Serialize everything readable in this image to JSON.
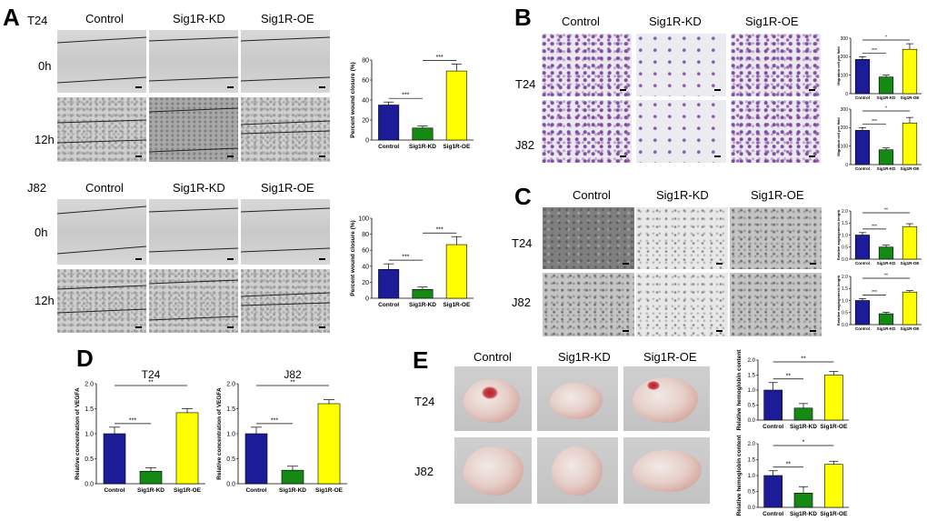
{
  "panels": {
    "A": {
      "label": "A",
      "cols": [
        "Control",
        "Sig1R-KD",
        "Sig1R-OE"
      ],
      "groups": [
        {
          "cell_line": "T24",
          "rows": [
            "0h",
            "12h"
          ]
        },
        {
          "cell_line": "J82",
          "rows": [
            "0h",
            "12h"
          ]
        }
      ]
    },
    "B": {
      "label": "B",
      "cols": [
        "Control",
        "Sig1R-KD",
        "Sig1R-OE"
      ],
      "rows": [
        "T24",
        "J82"
      ]
    },
    "C": {
      "label": "C",
      "cols": [
        "Control",
        "Sig1R-KD",
        "Sig1R-OE"
      ],
      "rows": [
        "T24",
        "J82"
      ]
    },
    "D": {
      "label": "D"
    },
    "E": {
      "label": "E",
      "cols": [
        "Control",
        "Sig1R-KD",
        "Sig1R-OE"
      ],
      "rows": [
        "T24",
        "J82"
      ]
    }
  },
  "colors": {
    "control": "#1c1c99",
    "kd": "#148a14",
    "oe": "#ffff00"
  },
  "chart_data": [
    {
      "id": "A-T24",
      "type": "bar",
      "categories": [
        "Control",
        "Sig1R-KD",
        "Sig1R-OE"
      ],
      "values": [
        35,
        12,
        69
      ],
      "errors": [
        3,
        2,
        7
      ],
      "ylabel": "Percent wound closure (%)",
      "ylim": [
        0,
        80
      ],
      "yticks": [
        "0",
        "20",
        "40",
        "60",
        "80"
      ],
      "sig": [
        {
          "pair": [
            0,
            1
          ],
          "text": "***"
        },
        {
          "pair": [
            1,
            2
          ],
          "text": "***"
        }
      ]
    },
    {
      "id": "A-J82",
      "type": "bar",
      "categories": [
        "Control",
        "Sig1R-KD",
        "Sig1R-OE"
      ],
      "values": [
        36,
        11,
        67
      ],
      "errors": [
        7,
        3,
        10
      ],
      "ylabel": "Percent wound closure (%)",
      "ylim": [
        0,
        100
      ],
      "yticks": [
        "0",
        "20",
        "40",
        "60",
        "80",
        "100"
      ],
      "sig": [
        {
          "pair": [
            0,
            1
          ],
          "text": "***"
        },
        {
          "pair": [
            1,
            2
          ],
          "text": "***"
        }
      ]
    },
    {
      "id": "B-T24",
      "type": "bar",
      "categories": [
        "Control",
        "Sig1R-KD",
        "Sig1R-OE"
      ],
      "values": [
        185,
        90,
        240
      ],
      "errors": [
        15,
        10,
        30
      ],
      "ylabel": "Migration cell per field",
      "ylim": [
        0,
        300
      ],
      "yticks": [
        "0",
        "100",
        "200",
        "300"
      ],
      "sig": [
        {
          "pair": [
            0,
            1
          ],
          "text": "***"
        },
        {
          "pair": [
            0,
            2
          ],
          "text": "*"
        }
      ]
    },
    {
      "id": "B-J82",
      "type": "bar",
      "categories": [
        "Control",
        "Sig1R-KD",
        "Sig1R-OE"
      ],
      "values": [
        185,
        80,
        225
      ],
      "errors": [
        15,
        10,
        30
      ],
      "ylabel": "Migration cell per field",
      "ylim": [
        0,
        300
      ],
      "yticks": [
        "0",
        "100",
        "200",
        "300"
      ],
      "sig": [
        {
          "pair": [
            0,
            1
          ],
          "text": "***"
        },
        {
          "pair": [
            0,
            2
          ],
          "text": "*"
        }
      ]
    },
    {
      "id": "C-T24",
      "type": "bar",
      "categories": [
        "Control",
        "Sig1R-KD",
        "Sig1R-OE"
      ],
      "values": [
        1.0,
        0.5,
        1.35
      ],
      "errors": [
        0.1,
        0.08,
        0.12
      ],
      "ylabel": "Relative angiogenesis length",
      "ylim": [
        0,
        2.0
      ],
      "yticks": [
        "0.0",
        "0.5",
        "1.0",
        "1.5",
        "2.0"
      ],
      "sig": [
        {
          "pair": [
            0,
            1
          ],
          "text": "***"
        },
        {
          "pair": [
            0,
            2
          ],
          "text": "**"
        }
      ]
    },
    {
      "id": "C-J82",
      "type": "bar",
      "categories": [
        "Control",
        "Sig1R-KD",
        "Sig1R-OE"
      ],
      "values": [
        1.0,
        0.45,
        1.35
      ],
      "errors": [
        0.08,
        0.06,
        0.06
      ],
      "ylabel": "Relative angiogenesis length",
      "ylim": [
        0,
        2.0
      ],
      "yticks": [
        "0.0",
        "0.5",
        "1.0",
        "1.5",
        "2.0"
      ],
      "sig": [
        {
          "pair": [
            0,
            1
          ],
          "text": "***"
        },
        {
          "pair": [
            0,
            2
          ],
          "text": "**"
        }
      ]
    },
    {
      "id": "D-T24",
      "type": "bar",
      "title": "T24",
      "categories": [
        "Control",
        "Sig1R-KD",
        "Sig1R-OE"
      ],
      "values": [
        1.0,
        0.25,
        1.42
      ],
      "errors": [
        0.13,
        0.07,
        0.08
      ],
      "ylabel": "Relative concentration of VEGFA",
      "ylim": [
        0,
        2.0
      ],
      "yticks": [
        "0.0",
        "0.5",
        "1.0",
        "1.5",
        "2.0"
      ],
      "sig": [
        {
          "pair": [
            0,
            1
          ],
          "text": "***"
        },
        {
          "pair": [
            0,
            2
          ],
          "text": "**"
        }
      ]
    },
    {
      "id": "D-J82",
      "type": "bar",
      "title": "J82",
      "categories": [
        "Control",
        "Sig1R-KD",
        "Sig1R-OE"
      ],
      "values": [
        1.0,
        0.27,
        1.6
      ],
      "errors": [
        0.13,
        0.08,
        0.08
      ],
      "ylabel": "Relative concentration of VEGFA",
      "ylim": [
        0,
        2.0
      ],
      "yticks": [
        "0.0",
        "0.5",
        "1.0",
        "1.5",
        "2.0"
      ],
      "sig": [
        {
          "pair": [
            0,
            1
          ],
          "text": "***"
        },
        {
          "pair": [
            0,
            2
          ],
          "text": "**"
        }
      ]
    },
    {
      "id": "E-T24",
      "type": "bar",
      "categories": [
        "Control",
        "Sig1R-KD",
        "Sig1R-OE"
      ],
      "values": [
        1.0,
        0.4,
        1.5
      ],
      "errors": [
        0.25,
        0.15,
        0.12
      ],
      "ylabel": "Relative hemoglobin content",
      "ylim": [
        0,
        2.0
      ],
      "yticks": [
        "0.0",
        "0.5",
        "1.0",
        "1.5",
        "2.0"
      ],
      "sig": [
        {
          "pair": [
            0,
            1
          ],
          "text": "**"
        },
        {
          "pair": [
            0,
            2
          ],
          "text": "**"
        }
      ]
    },
    {
      "id": "E-J82",
      "type": "bar",
      "categories": [
        "Control",
        "Sig1R-KD",
        "Sig1R-OE"
      ],
      "values": [
        1.0,
        0.45,
        1.35
      ],
      "errors": [
        0.15,
        0.2,
        0.1
      ],
      "ylabel": "Relative hemoglobin content",
      "ylim": [
        0,
        2.0
      ],
      "yticks": [
        "0.0",
        "0.5",
        "1.0",
        "1.5",
        "2.0"
      ],
      "sig": [
        {
          "pair": [
            0,
            1
          ],
          "text": "**"
        },
        {
          "pair": [
            0,
            2
          ],
          "text": "*"
        }
      ]
    }
  ]
}
